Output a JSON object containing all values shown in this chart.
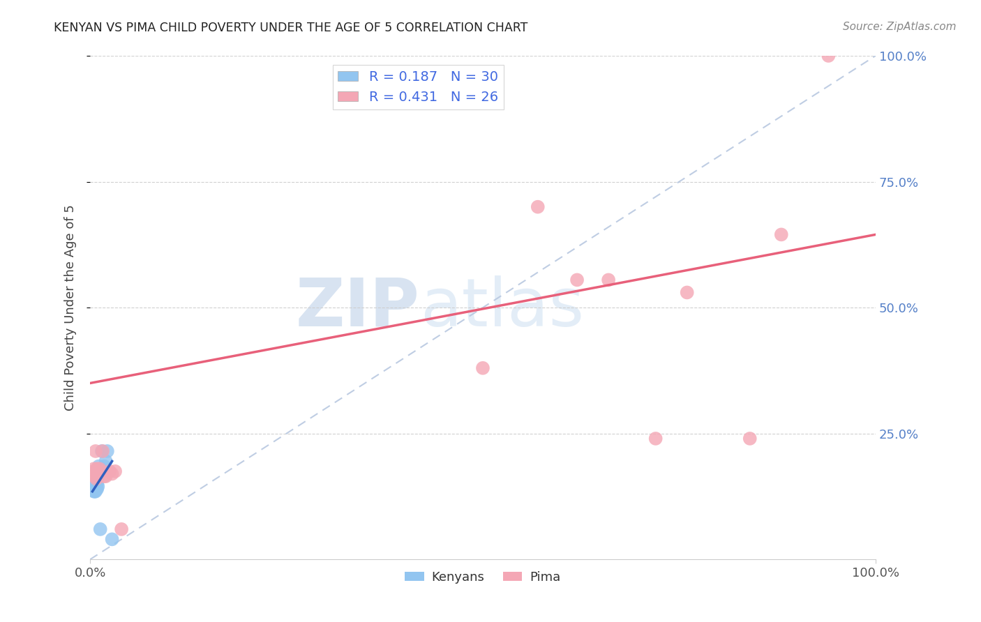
{
  "title": "KENYAN VS PIMA CHILD POVERTY UNDER THE AGE OF 5 CORRELATION CHART",
  "source": "Source: ZipAtlas.com",
  "ylabel": "Child Poverty Under the Age of 5",
  "xlim": [
    0,
    1.0
  ],
  "ylim": [
    0,
    1.0
  ],
  "kenyan_R": 0.187,
  "kenyan_N": 30,
  "pima_R": 0.431,
  "pima_N": 26,
  "kenyan_color": "#92C5F0",
  "pima_color": "#F4A7B5",
  "kenyan_line_color": "#3060C0",
  "pima_line_color": "#E8607A",
  "diagonal_color": "#B8C8E0",
  "watermark_zip": "ZIP",
  "watermark_atlas": "atlas",
  "kenyan_x": [
    0.003,
    0.003,
    0.004,
    0.004,
    0.005,
    0.005,
    0.005,
    0.005,
    0.006,
    0.006,
    0.006,
    0.007,
    0.007,
    0.007,
    0.008,
    0.008,
    0.008,
    0.009,
    0.009,
    0.009,
    0.01,
    0.01,
    0.011,
    0.012,
    0.013,
    0.015,
    0.018,
    0.02,
    0.022,
    0.028
  ],
  "kenyan_y": [
    0.165,
    0.145,
    0.155,
    0.14,
    0.17,
    0.155,
    0.145,
    0.135,
    0.16,
    0.15,
    0.135,
    0.165,
    0.155,
    0.135,
    0.155,
    0.15,
    0.14,
    0.16,
    0.15,
    0.14,
    0.165,
    0.145,
    0.185,
    0.175,
    0.06,
    0.215,
    0.185,
    0.195,
    0.215,
    0.04
  ],
  "pima_x": [
    0.003,
    0.004,
    0.005,
    0.006,
    0.007,
    0.008,
    0.009,
    0.01,
    0.012,
    0.014,
    0.016,
    0.018,
    0.02,
    0.025,
    0.028,
    0.032,
    0.04,
    0.5,
    0.57,
    0.62,
    0.66,
    0.72,
    0.76,
    0.84,
    0.88,
    0.94
  ],
  "pima_y": [
    0.17,
    0.175,
    0.18,
    0.165,
    0.215,
    0.16,
    0.18,
    0.17,
    0.18,
    0.175,
    0.215,
    0.165,
    0.165,
    0.175,
    0.17,
    0.175,
    0.06,
    0.38,
    0.7,
    0.555,
    0.555,
    0.24,
    0.53,
    0.24,
    0.645,
    1.0
  ],
  "pima_line_x0": 0.0,
  "pima_line_y0": 0.35,
  "pima_line_x1": 1.0,
  "pima_line_y1": 0.645,
  "kenyan_line_x0": 0.003,
  "kenyan_line_y0": 0.135,
  "kenyan_line_x1": 0.028,
  "kenyan_line_y1": 0.195
}
